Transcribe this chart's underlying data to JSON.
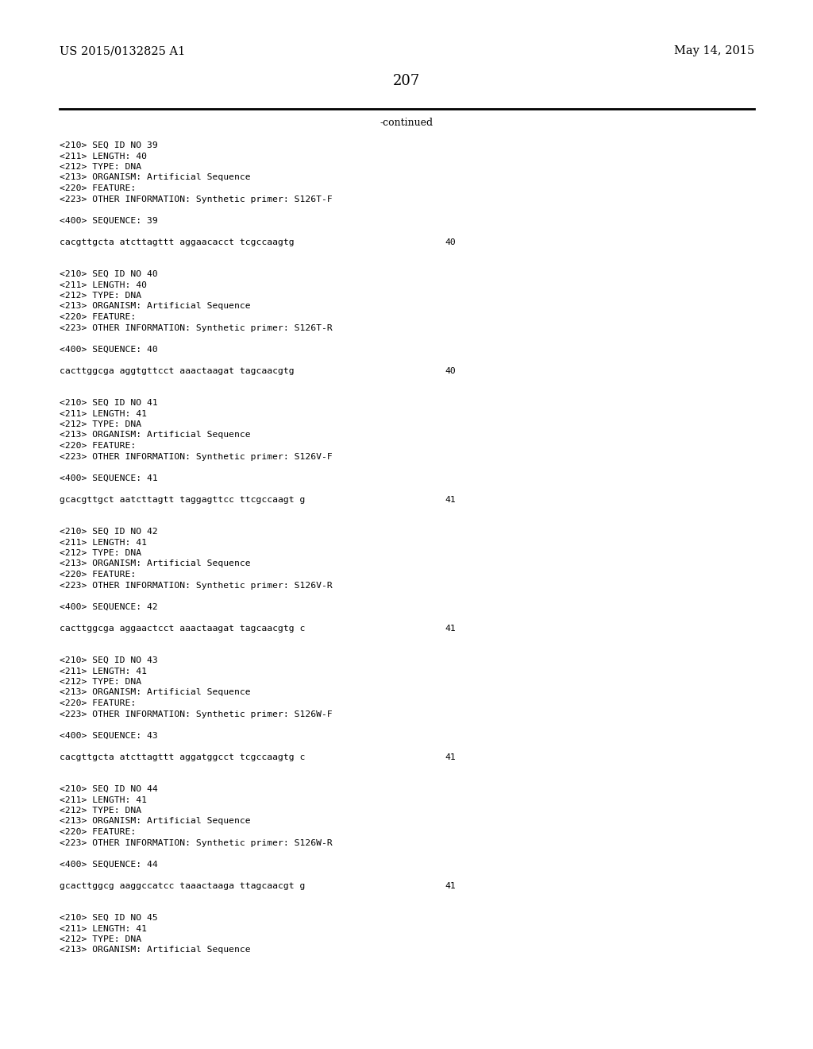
{
  "page_header_left": "US 2015/0132825 A1",
  "page_header_right": "May 14, 2015",
  "page_number": "207",
  "continued_label": "-continued",
  "background_color": "#ffffff",
  "text_color": "#000000",
  "lines": [
    {
      "text": "<210> SEQ ID NO 39"
    },
    {
      "text": "<211> LENGTH: 40"
    },
    {
      "text": "<212> TYPE: DNA"
    },
    {
      "text": "<213> ORGANISM: Artificial Sequence"
    },
    {
      "text": "<220> FEATURE:"
    },
    {
      "text": "<223> OTHER INFORMATION: Synthetic primer: S126T-F"
    },
    {
      "text": ""
    },
    {
      "text": "<400> SEQUENCE: 39"
    },
    {
      "text": ""
    },
    {
      "text": "cacgttgcta atcttagttt aggaacacct tcgccaagtg",
      "num": "40"
    },
    {
      "text": ""
    },
    {
      "text": ""
    },
    {
      "text": "<210> SEQ ID NO 40"
    },
    {
      "text": "<211> LENGTH: 40"
    },
    {
      "text": "<212> TYPE: DNA"
    },
    {
      "text": "<213> ORGANISM: Artificial Sequence"
    },
    {
      "text": "<220> FEATURE:"
    },
    {
      "text": "<223> OTHER INFORMATION: Synthetic primer: S126T-R"
    },
    {
      "text": ""
    },
    {
      "text": "<400> SEQUENCE: 40"
    },
    {
      "text": ""
    },
    {
      "text": "cacttggcga aggtgttcct aaactaagat tagcaacgtg",
      "num": "40"
    },
    {
      "text": ""
    },
    {
      "text": ""
    },
    {
      "text": "<210> SEQ ID NO 41"
    },
    {
      "text": "<211> LENGTH: 41"
    },
    {
      "text": "<212> TYPE: DNA"
    },
    {
      "text": "<213> ORGANISM: Artificial Sequence"
    },
    {
      "text": "<220> FEATURE:"
    },
    {
      "text": "<223> OTHER INFORMATION: Synthetic primer: S126V-F"
    },
    {
      "text": ""
    },
    {
      "text": "<400> SEQUENCE: 41"
    },
    {
      "text": ""
    },
    {
      "text": "gcacgttgct aatcttagtt taggagttcc ttcgccaagt g",
      "num": "41"
    },
    {
      "text": ""
    },
    {
      "text": ""
    },
    {
      "text": "<210> SEQ ID NO 42"
    },
    {
      "text": "<211> LENGTH: 41"
    },
    {
      "text": "<212> TYPE: DNA"
    },
    {
      "text": "<213> ORGANISM: Artificial Sequence"
    },
    {
      "text": "<220> FEATURE:"
    },
    {
      "text": "<223> OTHER INFORMATION: Synthetic primer: S126V-R"
    },
    {
      "text": ""
    },
    {
      "text": "<400> SEQUENCE: 42"
    },
    {
      "text": ""
    },
    {
      "text": "cacttggcga aggaactcct aaactaagat tagcaacgtg c",
      "num": "41"
    },
    {
      "text": ""
    },
    {
      "text": ""
    },
    {
      "text": "<210> SEQ ID NO 43"
    },
    {
      "text": "<211> LENGTH: 41"
    },
    {
      "text": "<212> TYPE: DNA"
    },
    {
      "text": "<213> ORGANISM: Artificial Sequence"
    },
    {
      "text": "<220> FEATURE:"
    },
    {
      "text": "<223> OTHER INFORMATION: Synthetic primer: S126W-F"
    },
    {
      "text": ""
    },
    {
      "text": "<400> SEQUENCE: 43"
    },
    {
      "text": ""
    },
    {
      "text": "cacgttgcta atcttagttt aggatggcct tcgccaagtg c",
      "num": "41"
    },
    {
      "text": ""
    },
    {
      "text": ""
    },
    {
      "text": "<210> SEQ ID NO 44"
    },
    {
      "text": "<211> LENGTH: 41"
    },
    {
      "text": "<212> TYPE: DNA"
    },
    {
      "text": "<213> ORGANISM: Artificial Sequence"
    },
    {
      "text": "<220> FEATURE:"
    },
    {
      "text": "<223> OTHER INFORMATION: Synthetic primer: S126W-R"
    },
    {
      "text": ""
    },
    {
      "text": "<400> SEQUENCE: 44"
    },
    {
      "text": ""
    },
    {
      "text": "gcacttggcg aaggccatcc taaactaaga ttagcaacgt g",
      "num": "41"
    },
    {
      "text": ""
    },
    {
      "text": ""
    },
    {
      "text": "<210> SEQ ID NO 45"
    },
    {
      "text": "<211> LENGTH: 41"
    },
    {
      "text": "<212> TYPE: DNA"
    },
    {
      "text": "<213> ORGANISM: Artificial Sequence"
    }
  ]
}
